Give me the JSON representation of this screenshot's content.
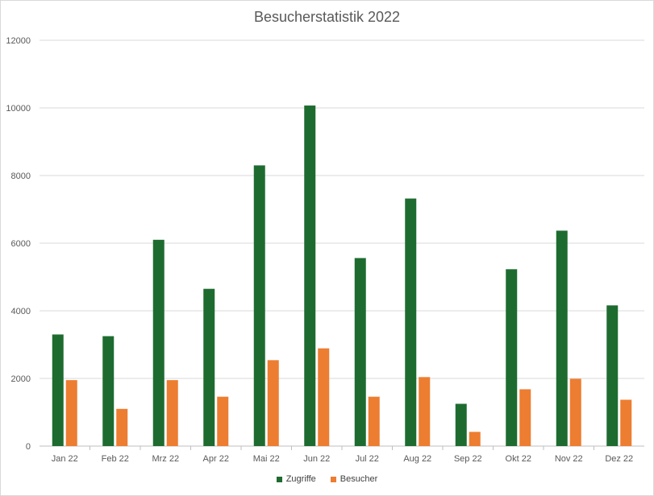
{
  "chart_data": {
    "type": "bar",
    "title": "Besucherstatistik 2022",
    "xlabel": "",
    "ylabel": "",
    "ylim": [
      0,
      12000
    ],
    "yticks": [
      0,
      2000,
      4000,
      6000,
      8000,
      10000,
      12000
    ],
    "grid": true,
    "legend_position": "bottom",
    "categories": [
      "Jan 22",
      "Feb 22",
      "Mrz 22",
      "Apr 22",
      "Mai 22",
      "Jun 22",
      "Jul 22",
      "Aug 22",
      "Sep 22",
      "Okt 22",
      "Nov 22",
      "Dez 22"
    ],
    "series": [
      {
        "name": "Zugriffe",
        "color": "#1e6b30",
        "values": [
          3300,
          3250,
          6100,
          4650,
          8300,
          10070,
          5560,
          7320,
          1250,
          5230,
          6370,
          4160
        ]
      },
      {
        "name": "Besucher",
        "color": "#ed7d31",
        "values": [
          1950,
          1100,
          1950,
          1460,
          2540,
          2890,
          1460,
          2040,
          420,
          1680,
          1990,
          1370
        ]
      }
    ]
  }
}
